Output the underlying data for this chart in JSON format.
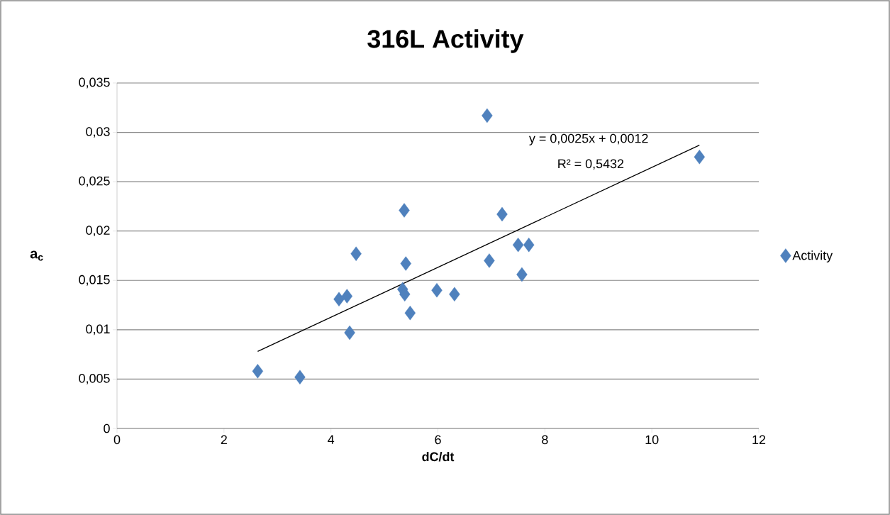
{
  "chart_data": {
    "type": "scatter",
    "title": "316L Activity",
    "xlabel": "dC/dt",
    "ylabel": "a$_{c}$",
    "annotations": [
      "y = 0,0025x + 0,0012",
      "R² = 0,5432"
    ],
    "series": [
      {
        "name": "Activity",
        "color": "#4f81bd",
        "marker": "diamond",
        "x": [
          2.63,
          3.42,
          4.15,
          4.3,
          4.35,
          4.47,
          5.37,
          5.4,
          5.34,
          5.38,
          5.48,
          5.98,
          6.31,
          6.92,
          6.96,
          7.2,
          7.5,
          7.7,
          7.57,
          10.89
        ],
        "values": [
          0.0058,
          0.0052,
          0.0131,
          0.0134,
          0.0097,
          0.0177,
          0.0221,
          0.0167,
          0.0141,
          0.0136,
          0.0117,
          0.014,
          0.0136,
          0.0317,
          0.017,
          0.0217,
          0.0186,
          0.0186,
          0.0156,
          0.0275
        ]
      },
      {
        "type": "line",
        "color": "#000000",
        "marker": "none",
        "line_style": "solid",
        "x": [
          2.63,
          10.89
        ],
        "values": [
          0.0078,
          0.0287
        ]
      }
    ],
    "xlim": [
      0,
      12
    ],
    "xticks": [
      0,
      2,
      4,
      6,
      8,
      10,
      12
    ],
    "ylim": [
      0,
      0.035
    ],
    "yticks": [
      {
        "value": 0,
        "label": "0"
      },
      {
        "value": 0.005,
        "label": "0,005"
      },
      {
        "value": 0.01,
        "label": "0,01"
      },
      {
        "value": 0.015,
        "label": "0,015"
      },
      {
        "value": 0.02,
        "label": "0,02"
      },
      {
        "value": 0.025,
        "label": "0,025"
      },
      {
        "value": 0.03,
        "label": "0,03"
      },
      {
        "value": 0.035,
        "label": "0,035"
      }
    ],
    "grid": "y",
    "legend": "right"
  }
}
